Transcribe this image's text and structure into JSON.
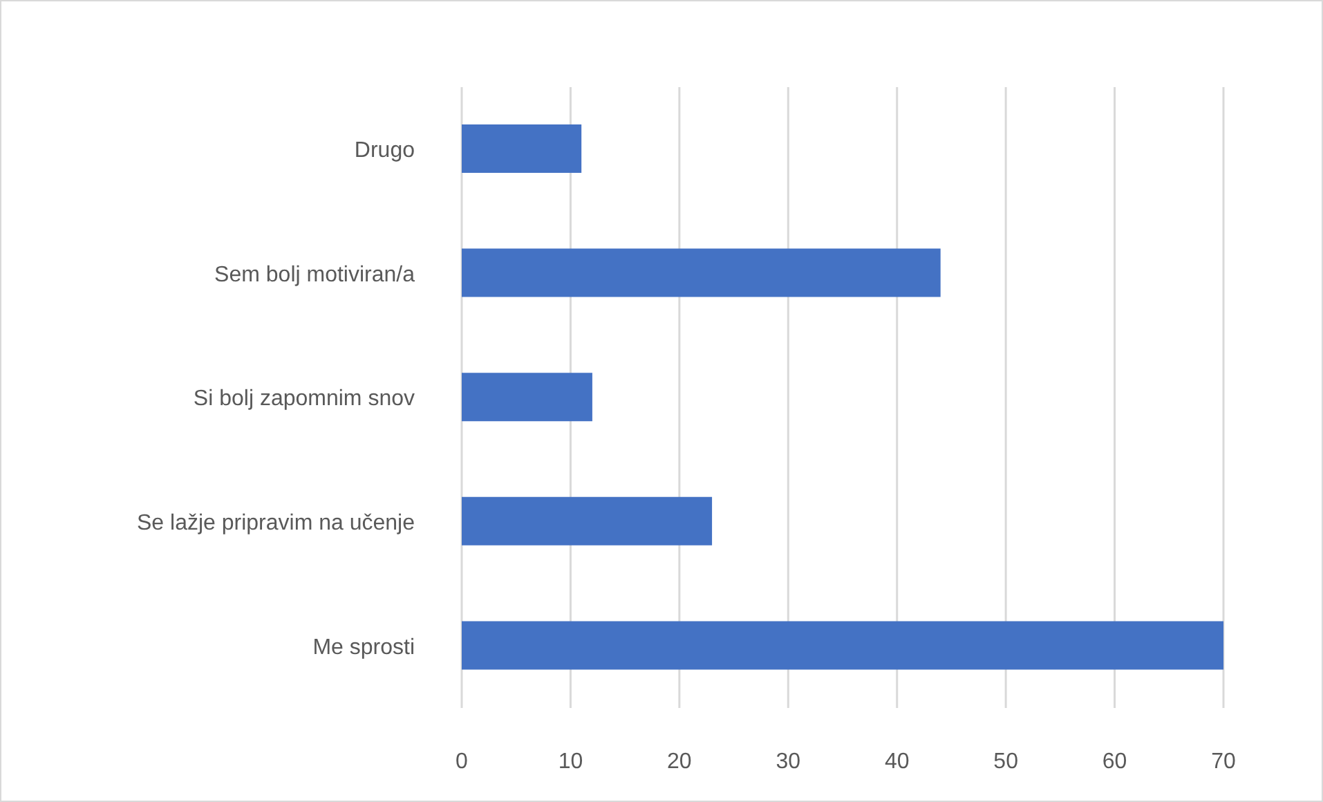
{
  "chart_data": {
    "type": "bar",
    "orientation": "horizontal",
    "categories": [
      "Drugo",
      "Sem bolj motiviran/a",
      "Si bolj zapomnim snov",
      "Se lažje pripravim na učenje",
      "Me sprosti"
    ],
    "values": [
      11,
      44,
      12,
      23,
      70
    ],
    "color": "#4472c4",
    "xlim": [
      0,
      70
    ],
    "xticks": [
      0,
      10,
      20,
      30,
      40,
      50,
      60,
      70
    ],
    "grid": "x"
  }
}
